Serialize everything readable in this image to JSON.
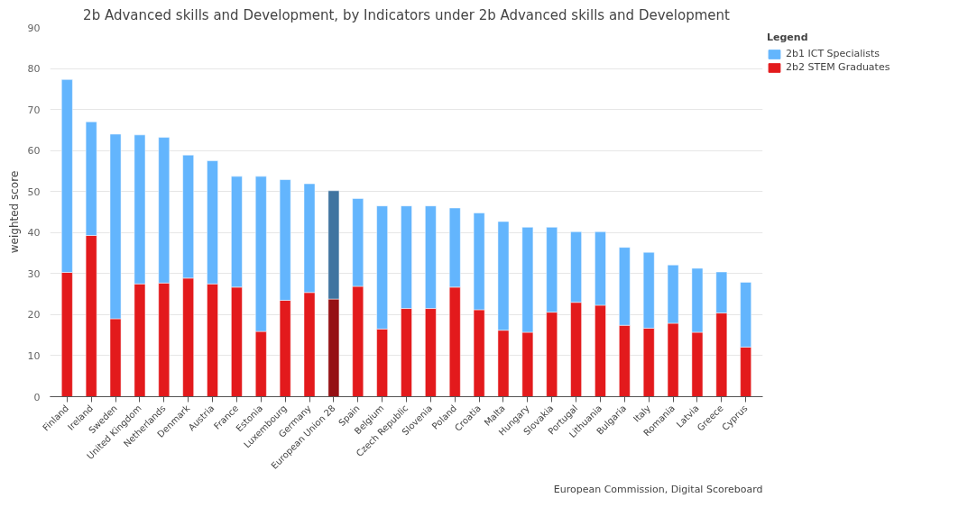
{
  "chart_data": {
    "type": "bar",
    "title": "2b Advanced skills and Development, by Indicators under 2b Advanced skills and Development",
    "ylabel": "weighted score",
    "legend_title": "Legend",
    "categories": [
      "Finland",
      "Ireland",
      "Sweden",
      "United Kingdom",
      "Netherlands",
      "Denmark",
      "Austria",
      "France",
      "Estonia",
      "Luxembourg",
      "Germany",
      "European Union 28",
      "Spain",
      "Belgium",
      "Czech Republic",
      "Slovenia",
      "Poland",
      "Croatia",
      "Malta",
      "Hungary",
      "Slovakia",
      "Portugal",
      "Lithuania",
      "Bulgaria",
      "Italy",
      "Romania",
      "Latvia",
      "Greece",
      "Cyprus"
    ],
    "stacked": true,
    "series": [
      {
        "name": "2b2 STEM Graduates",
        "color": "#e31a1c",
        "colors": [
          "#e31a1c",
          "#e31a1c",
          "#e31a1c",
          "#e31a1c",
          "#e31a1c",
          "#e31a1c",
          "#e31a1c",
          "#e31a1c",
          "#e31a1c",
          "#e31a1c",
          "#e31a1c",
          "#951014",
          "#e31a1c",
          "#e31a1c",
          "#e31a1c",
          "#e31a1c",
          "#e31a1c",
          "#e31a1c",
          "#e31a1c",
          "#e31a1c",
          "#e31a1c",
          "#e31a1c",
          "#e31a1c",
          "#e31a1c",
          "#e31a1c",
          "#e31a1c",
          "#e31a1c",
          "#e31a1c",
          "#e31a1c"
        ],
        "values": [
          30.3,
          39.3,
          19,
          27.5,
          27.7,
          28.9,
          27.5,
          26.7,
          15.9,
          23.5,
          25.4,
          23.8,
          26.9,
          16.5,
          21.5,
          21.5,
          26.7,
          21.2,
          16.2,
          15.7,
          20.6,
          23,
          22.3,
          17.4,
          16.7,
          17.9,
          15.7,
          20.4,
          12.1
        ]
      },
      {
        "name": "2b1 ICT Specialists",
        "color": "#63b5fd",
        "colors": [
          "#63b5fd",
          "#63b5fd",
          "#63b5fd",
          "#63b5fd",
          "#63b5fd",
          "#63b5fd",
          "#63b5fd",
          "#63b5fd",
          "#63b5fd",
          "#63b5fd",
          "#63b5fd",
          "#3f74a0",
          "#63b5fd",
          "#63b5fd",
          "#63b5fd",
          "#63b5fd",
          "#63b5fd",
          "#63b5fd",
          "#63b5fd",
          "#63b5fd",
          "#63b5fd",
          "#63b5fd",
          "#63b5fd",
          "#63b5fd",
          "#63b5fd",
          "#63b5fd",
          "#63b5fd",
          "#63b5fd",
          "#63b5fd"
        ],
        "values": [
          47.0,
          27.7,
          45,
          36.3,
          35.5,
          30,
          30,
          27,
          37.8,
          29.4,
          26.5,
          26.4,
          21.4,
          30,
          25,
          25,
          19.3,
          23.6,
          26.5,
          25.6,
          20.7,
          17.2,
          17.9,
          19,
          18.5,
          14.2,
          15.6,
          10,
          15.8
        ]
      }
    ],
    "ylim": [
      0,
      90
    ],
    "yticks": [
      0,
      10,
      20,
      30,
      40,
      50,
      60,
      70,
      80,
      90
    ],
    "grid": "y",
    "legend": "top right",
    "annotations": [
      "European Commission, Digital Scoreboard"
    ]
  }
}
